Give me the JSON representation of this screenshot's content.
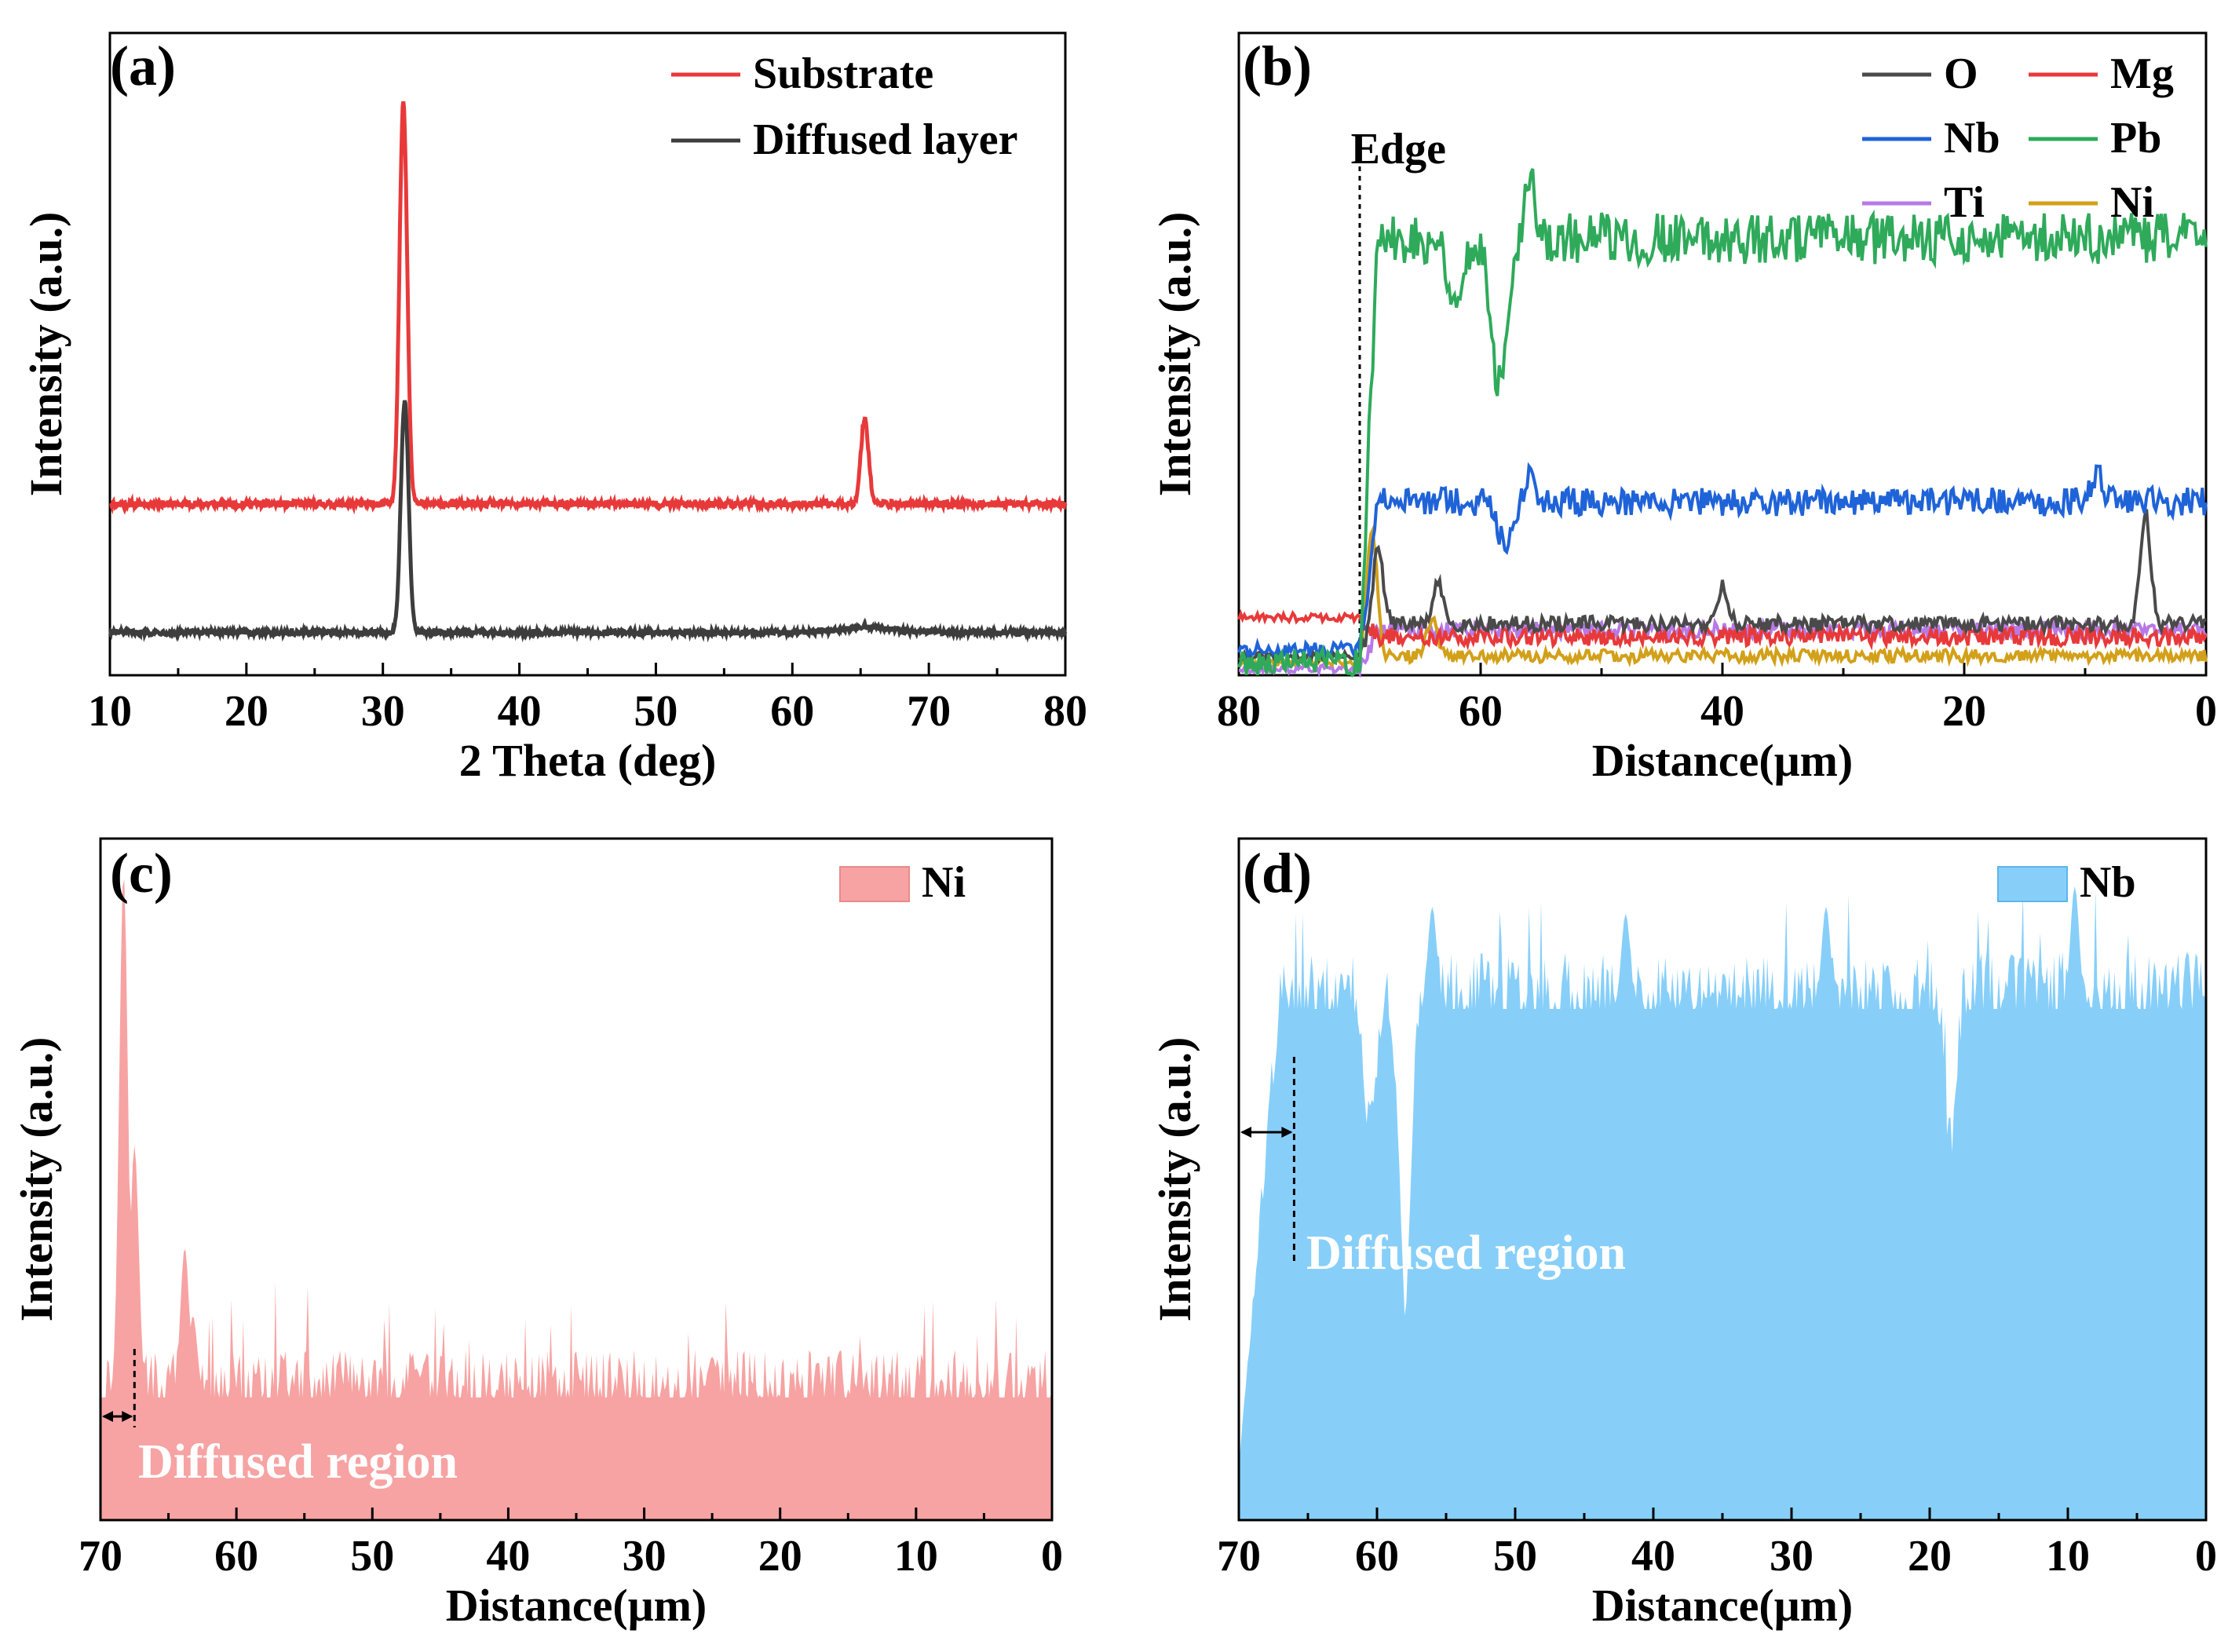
{
  "chart_data": [
    {
      "id": "a",
      "panel_label": "(a)",
      "type": "line",
      "xlabel": "2 Theta (deg)",
      "ylabel": "Intensity (a.u.)",
      "xlim": [
        10,
        80
      ],
      "xticks": [
        10,
        20,
        30,
        40,
        50,
        60,
        70,
        80
      ],
      "xticks_reversed": false,
      "y_tick_labels": false,
      "legend": "top-right",
      "series": [
        {
          "name": "Substrate",
          "color": "#e8393a",
          "baseline": 20,
          "noise": 0.4,
          "peaks": [
            {
              "center": 31.5,
              "height": 47,
              "width": 0.4
            },
            {
              "center": 65.3,
              "height": 10,
              "width": 0.4
            }
          ]
        },
        {
          "name": "Diffused layer",
          "color": "#3d3d3d",
          "baseline": 5,
          "noise": 0.3,
          "peaks": [
            {
              "center": 31.6,
              "height": 27,
              "width": 0.4
            },
            {
              "center": 65.5,
              "height": 0.6,
              "width": 2.5
            }
          ]
        }
      ],
      "ylim": [
        0,
        75
      ]
    },
    {
      "id": "b",
      "panel_label": "(b)",
      "type": "line",
      "xlabel": "Distance(μm)",
      "ylabel": "Intensity (a.u.)",
      "xlim": [
        80,
        0
      ],
      "xticks": [
        80,
        60,
        40,
        20,
        0
      ],
      "xticks_reversed": true,
      "y_tick_labels": false,
      "legend": "top-right",
      "annotation": {
        "text": "Edge",
        "x": 70
      },
      "edge": 70,
      "ylim": [
        0,
        100
      ],
      "series": [
        {
          "name": "O",
          "color": "#4a4a4a",
          "pre": 3,
          "post": 8,
          "noise": 1.2,
          "spikes": [
            {
              "x": 68.5,
              "h": 12
            },
            {
              "x": 63.5,
              "h": 6
            },
            {
              "x": 40,
              "h": 6
            },
            {
              "x": 5,
              "h": 17
            }
          ]
        },
        {
          "name": "Mg",
          "color": "#e8393a",
          "pre": 9,
          "post": 6,
          "noise": 1.4,
          "spikes": []
        },
        {
          "name": "Nb",
          "color": "#1f63d8",
          "pre": 4,
          "post": 27,
          "noise": 2.2,
          "spikes": [
            {
              "x": 56,
              "h": 4
            },
            {
              "x": 9,
              "h": 5
            }
          ],
          "dips": [
            {
              "x": 58,
              "d": 6
            }
          ]
        },
        {
          "name": "Pb",
          "color": "#2eaa5a",
          "pre": 2,
          "post": 68,
          "noise": 4,
          "spikes": [
            {
              "x": 56,
              "h": 10
            }
          ],
          "dips": [
            {
              "x": 58.5,
              "d": 22
            },
            {
              "x": 62,
              "d": 10
            }
          ]
        },
        {
          "name": "Ti",
          "color": "#b67ae6",
          "pre": 1,
          "post": 7,
          "noise": 1.3,
          "spikes": []
        },
        {
          "name": "Ni",
          "color": "#d2a019",
          "pre": 2,
          "post": 3,
          "noise": 1.0,
          "spikes": [
            {
              "x": 69,
              "h": 20
            },
            {
              "x": 64,
              "h": 6
            }
          ]
        }
      ]
    },
    {
      "id": "c",
      "panel_label": "(c)",
      "type": "area",
      "xlabel": "Distance(μm)",
      "ylabel": "Intensity (a.u.)",
      "xlim": [
        70,
        0
      ],
      "xticks": [
        70,
        60,
        50,
        40,
        30,
        20,
        10,
        0
      ],
      "xticks_reversed": true,
      "y_tick_labels": false,
      "legend": "top-right",
      "ylim": [
        0,
        100
      ],
      "series": [
        {
          "name": "Ni",
          "color": "#f7a3a3",
          "base": 18,
          "noise": 5,
          "spikes": [
            {
              "x": 68.3,
              "h": 95
            },
            {
              "x": 67.5,
              "h": 55
            },
            {
              "x": 63.8,
              "h": 40
            },
            {
              "x": 63.2,
              "h": 30
            },
            {
              "x": 25,
              "h": 24
            }
          ]
        }
      ],
      "annotation": {
        "text": "Diffused region",
        "x": 67.5
      }
    },
    {
      "id": "d",
      "panel_label": "(d)",
      "type": "area",
      "xlabel": "Distance(μm)",
      "ylabel": "Intensity (a.u.)",
      "xlim": [
        70,
        0
      ],
      "xticks": [
        70,
        60,
        50,
        40,
        30,
        20,
        10,
        0
      ],
      "xticks_reversed": true,
      "y_tick_labels": false,
      "legend": "top-right",
      "ylim": [
        0,
        100
      ],
      "series": [
        {
          "name": "Nb",
          "color": "#87cff9",
          "base": 75,
          "noise": 6,
          "spikes": [
            {
              "x": 56,
              "h": 90
            },
            {
              "x": 42,
              "h": 89
            },
            {
              "x": 27.5,
              "h": 90
            },
            {
              "x": 9.5,
              "h": 93
            }
          ],
          "dips": [
            {
              "x": 58,
              "d": 45
            },
            {
              "x": 60.5,
              "d": 20
            },
            {
              "x": 18.5,
              "d": 22
            }
          ]
        }
      ],
      "annotation": {
        "text": "Diffused region",
        "x": 66
      }
    }
  ]
}
